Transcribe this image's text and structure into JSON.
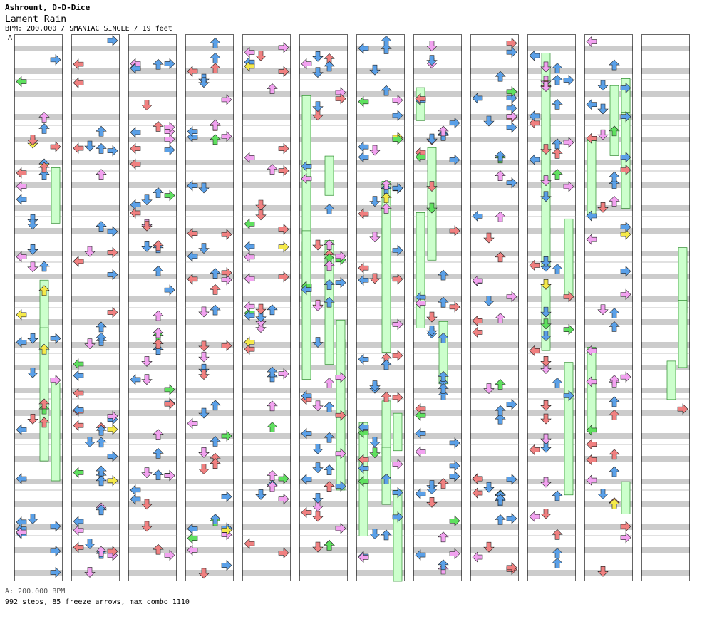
{
  "song": {
    "artist": "Ashrount, D-D-Dice",
    "title": "Lament Rain",
    "info": "BPM: 200.000 / SMANIAC SINGLE / 19 feet"
  },
  "bpm_marker": {
    "label": "A",
    "footer": "A: 200.000 BPM"
  },
  "stats": "992 steps, 85 freeze arrows, max combo 1110",
  "colors": {
    "red": "#f08080",
    "blue": "#5aa0e8",
    "pink": "#f2a2f0",
    "green": "#5fe05f",
    "yellow": "#f5e94a",
    "freeze": "#ccffcc",
    "stripe": "#cccccc"
  },
  "columns": 12
}
